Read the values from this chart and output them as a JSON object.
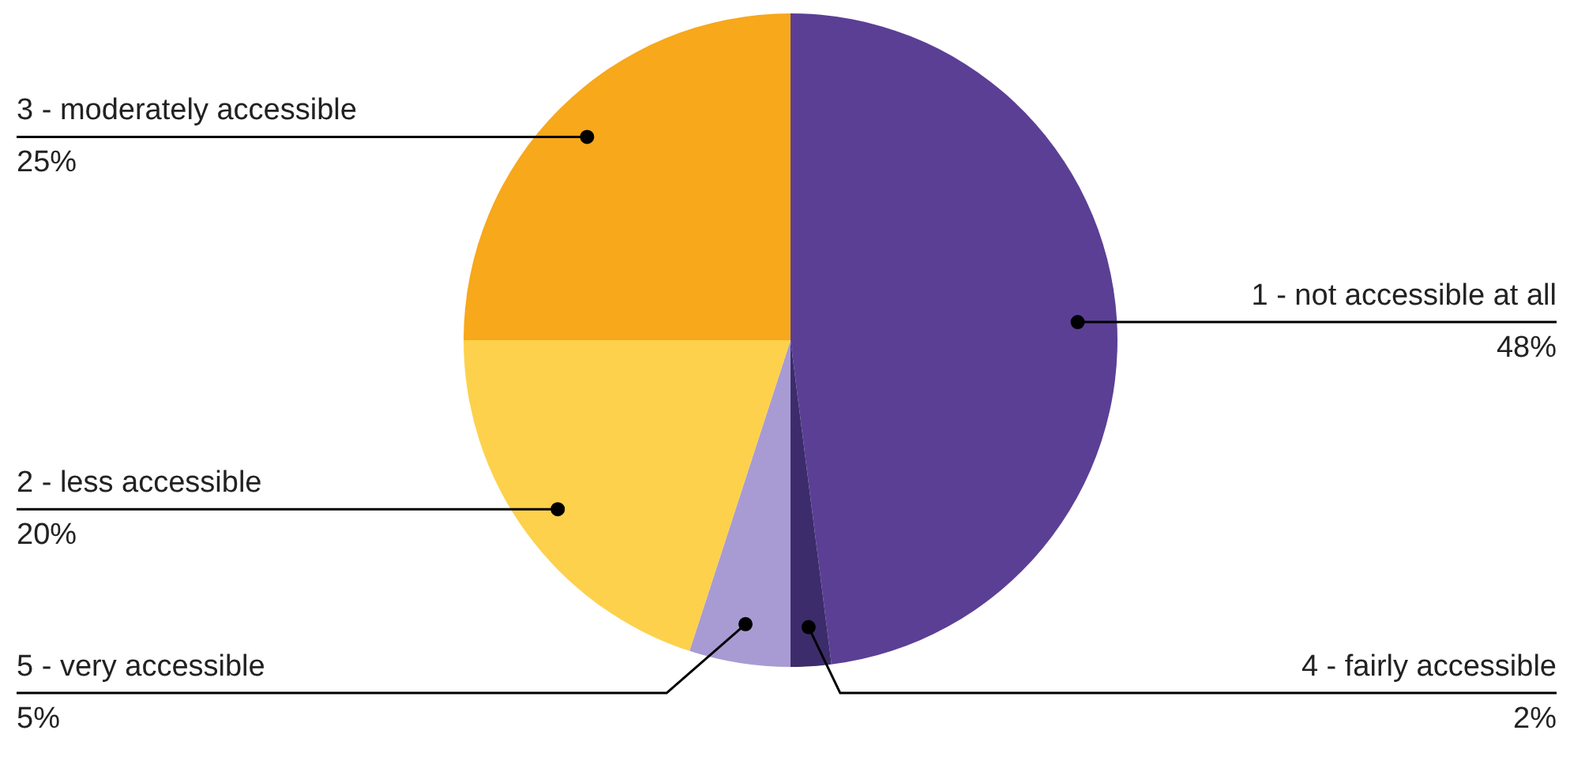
{
  "chart_data": {
    "type": "pie",
    "categories": [
      "1 - not accessible at all",
      "4 - fairly accessible",
      "5 - very accessible",
      "2 - less accessible",
      "3 - moderately accessible"
    ],
    "values": [
      48,
      2,
      5,
      20,
      25
    ],
    "colors": [
      "#5b3f95",
      "#3d2c6b",
      "#a89bd4",
      "#fdd14b",
      "#f7a81b"
    ],
    "value_labels": [
      "48%",
      "2%",
      "5%",
      "20%",
      "25%"
    ]
  }
}
